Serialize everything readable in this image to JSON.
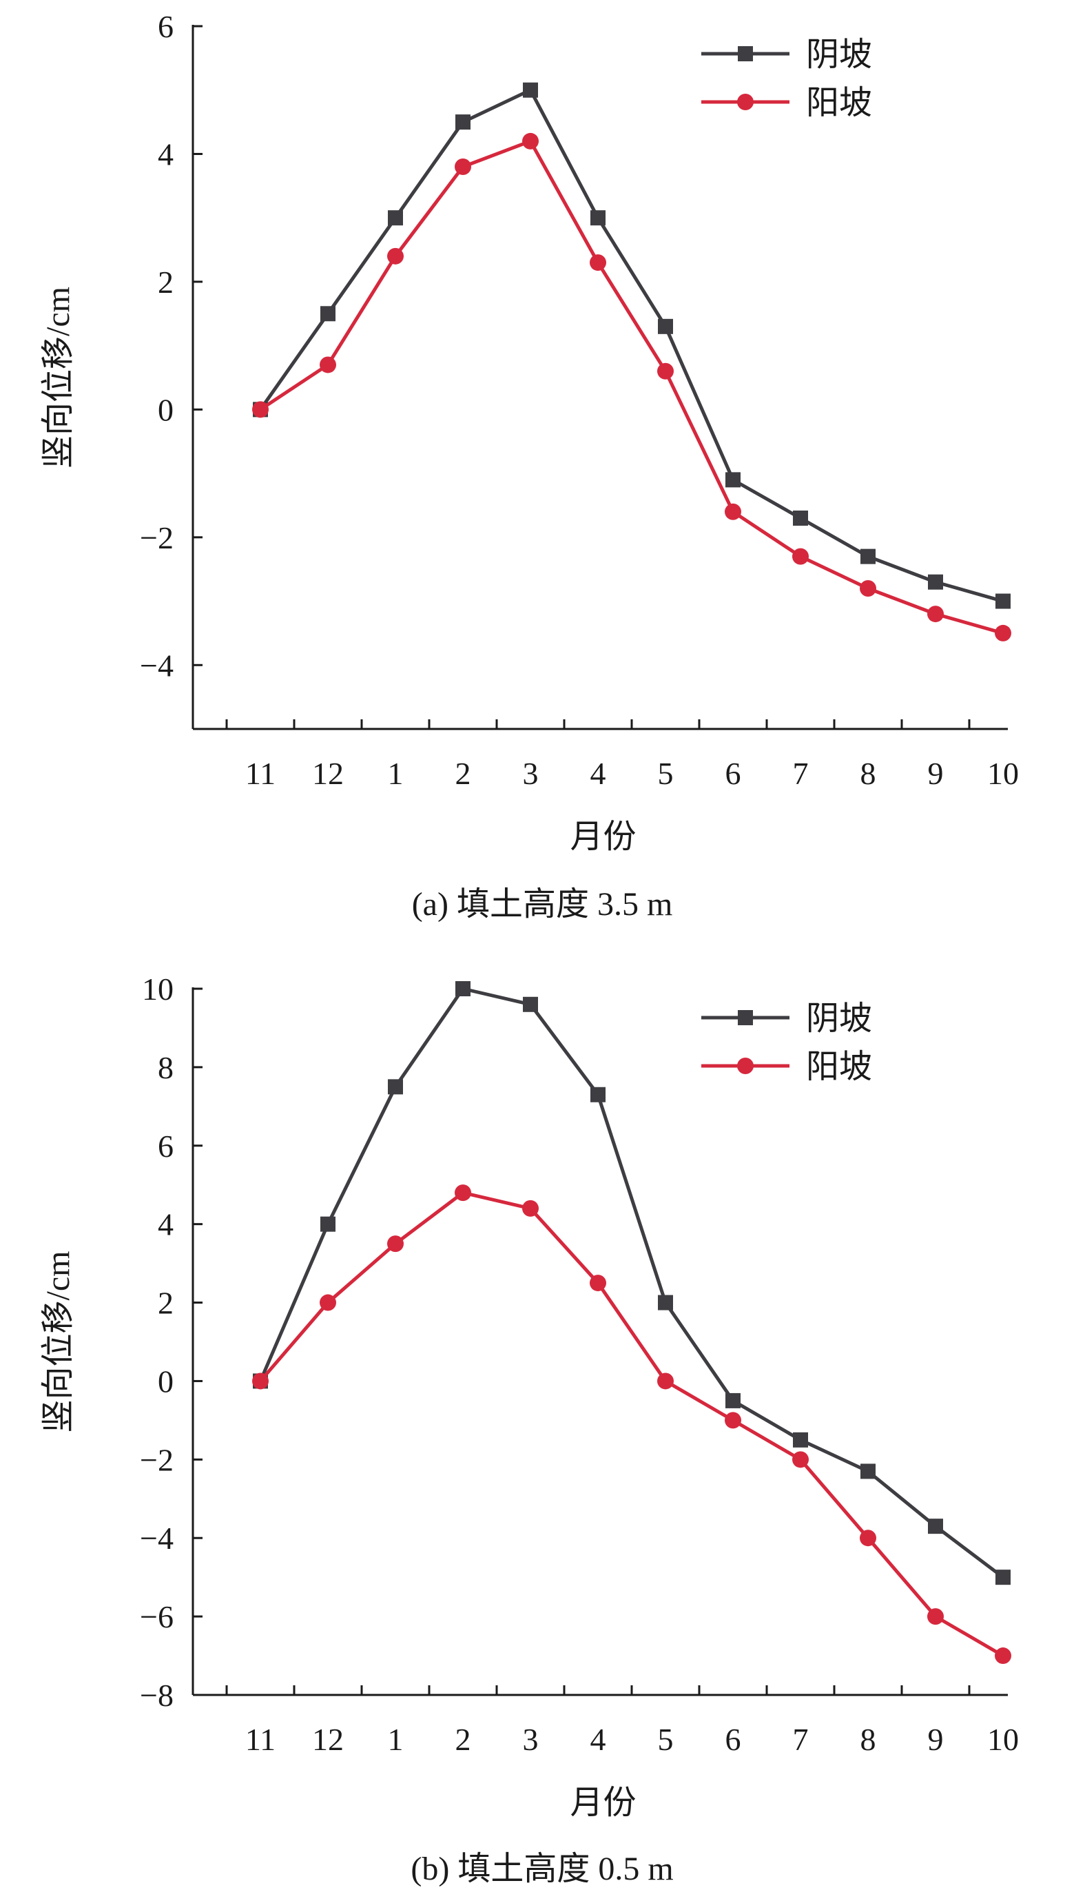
{
  "chart_data": [
    {
      "type": "line",
      "caption": "(a) 填土高度 3.5 m",
      "xlabel": "月份",
      "ylabel": "竖向位移/cm",
      "categories": [
        "11",
        "12",
        "1",
        "2",
        "3",
        "4",
        "5",
        "6",
        "7",
        "8",
        "9",
        "10"
      ],
      "ylim": [
        -5,
        6
      ],
      "yticks": [
        6,
        4,
        2,
        0,
        -2,
        -4
      ],
      "ytick_labels": [
        "6",
        "4",
        "2",
        "0",
        "−2",
        "−4"
      ],
      "legend_position": "top-right",
      "grid": false,
      "series": [
        {
          "name": "阴坡",
          "marker": "square",
          "color": "#3d3d42",
          "values": [
            0,
            1.5,
            3.0,
            4.5,
            5.0,
            3.0,
            1.3,
            -1.1,
            -1.7,
            -2.3,
            -2.7,
            -3.0
          ]
        },
        {
          "name": "阳坡",
          "marker": "circle",
          "color": "#d6283d",
          "values": [
            0,
            0.7,
            2.4,
            3.8,
            4.2,
            2.3,
            0.6,
            -1.6,
            -2.3,
            -2.8,
            -3.2,
            -3.5
          ]
        }
      ]
    },
    {
      "type": "line",
      "caption": "(b) 填土高度 0.5 m",
      "xlabel": "月份",
      "ylabel": "竖向位移/cm",
      "categories": [
        "11",
        "12",
        "1",
        "2",
        "3",
        "4",
        "5",
        "6",
        "7",
        "8",
        "9",
        "10"
      ],
      "ylim": [
        -8,
        10
      ],
      "yticks": [
        10,
        8,
        6,
        4,
        2,
        0,
        -2,
        -4,
        -6,
        -8
      ],
      "ytick_labels": [
        "10",
        "8",
        "6",
        "4",
        "2",
        "0",
        "−2",
        "−4",
        "−6",
        "−8"
      ],
      "legend_position": "top-right",
      "grid": false,
      "series": [
        {
          "name": "阴坡",
          "marker": "square",
          "color": "#3d3d42",
          "values": [
            0,
            4.0,
            7.5,
            10.0,
            9.6,
            7.3,
            2.0,
            -0.5,
            -1.5,
            -2.3,
            -3.7,
            -5.0
          ]
        },
        {
          "name": "阳坡",
          "marker": "circle",
          "color": "#d6283d",
          "values": [
            0,
            2.0,
            3.5,
            4.8,
            4.4,
            2.5,
            0,
            -1.0,
            -2.0,
            -4.0,
            -6.0,
            -7.0
          ]
        }
      ]
    }
  ]
}
